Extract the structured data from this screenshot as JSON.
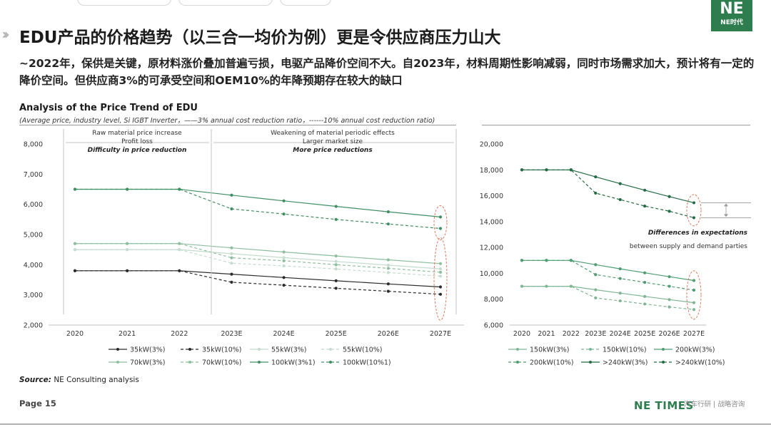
{
  "header": {
    "title": "EDU产品的价格趋势（以三合一均价为例）更是令供应商压力山大",
    "summary": "~2022年，保供是关键，原材料涨价叠加普遍亏损，电驱产品降价空间不大。自2023年，材料周期性影响减弱，同时市场需求加大，预计将有一定的降价空间。但供应商3%的可承受空间和OEM10%的年降预期存在较大的缺口",
    "logo_text": "NE时代",
    "logo_mark": "NE"
  },
  "chart_header": {
    "title": "Analysis of the Price Trend of EDU",
    "subtitle": "(Average price, industry level, Si IGBT Inverter，——3% annual cost reduction ratio，------10% annual cost reduction ratio)"
  },
  "chart_data": [
    {
      "type": "line",
      "x": [
        "2020",
        "2021",
        "2022",
        "2023E",
        "2024E",
        "2025E",
        "2026E",
        "2027E"
      ],
      "ylim": [
        2000,
        8000
      ],
      "yticks": [
        "2,000",
        "3,000",
        "4,000",
        "5,000",
        "6,000",
        "7,000",
        "8,000"
      ],
      "annotations": {
        "left": [
          "Raw material price increase",
          "Profit loss",
          "Difficulty in price reduction"
        ],
        "right": [
          "Weakening of material periodic effects",
          "Larger market size",
          "More price reductions"
        ]
      },
      "series": [
        {
          "name": "35kW(3%)",
          "color": "#2b2b2b",
          "dashed": false,
          "values": [
            3800,
            3800,
            3800,
            3686,
            3575,
            3468,
            3364,
            3263
          ]
        },
        {
          "name": "35kW(10%)",
          "color": "#2b2b2b",
          "dashed": true,
          "values": [
            3800,
            3800,
            3800,
            3420,
            3320,
            3220,
            3120,
            3020
          ]
        },
        {
          "name": "55kW(3%)",
          "color": "#c4dccd",
          "dashed": false,
          "values": [
            4500,
            4500,
            4500,
            4365,
            4234,
            4107,
            3984,
            3864
          ]
        },
        {
          "name": "55kW(10%)",
          "color": "#c4dccd",
          "dashed": true,
          "values": [
            4500,
            4500,
            4500,
            4050,
            3960,
            3860,
            3740,
            3620
          ]
        },
        {
          "name": "70kW(3%)",
          "color": "#8dbf9f",
          "dashed": false,
          "values": [
            4700,
            4700,
            4700,
            4559,
            4422,
            4290,
            4161,
            4036
          ]
        },
        {
          "name": "70kW(10%)",
          "color": "#8dbf9f",
          "dashed": true,
          "values": [
            4700,
            4700,
            4700,
            4230,
            4130,
            4000,
            3880,
            3750
          ]
        },
        {
          "name": "100kW(3%1)",
          "color": "#3f8f63",
          "dashed": false,
          "values": [
            6500,
            6500,
            6500,
            6305,
            6116,
            5932,
            5754,
            5582
          ]
        },
        {
          "name": "100kW(10%1)",
          "color": "#3f8f63",
          "dashed": true,
          "values": [
            6500,
            6500,
            6500,
            5850,
            5680,
            5500,
            5350,
            5200
          ]
        }
      ],
      "legend": "bottom"
    },
    {
      "type": "line",
      "x": [
        "2020",
        "2021",
        "2022",
        "2023E",
        "2024E",
        "2025E",
        "2026E",
        "2027E"
      ],
      "ylim": [
        6000,
        20000
      ],
      "yticks": [
        "6,000",
        "8,000",
        "10,000",
        "12,000",
        "14,000",
        "16,000",
        "18,000",
        "20,000"
      ],
      "annotations": [
        "Differences in expectations",
        "between supply and demand parties"
      ],
      "series": [
        {
          "name": "150kW(3%)",
          "color": "#7fb693",
          "dashed": false,
          "values": [
            9000,
            9000,
            9000,
            8730,
            8468,
            8214,
            7968,
            7729
          ]
        },
        {
          "name": "150kW(10%)",
          "color": "#7fb693",
          "dashed": true,
          "values": [
            9000,
            9000,
            9000,
            8100,
            7870,
            7630,
            7400,
            7200
          ]
        },
        {
          "name": "200kW(3%)",
          "color": "#4f9d72",
          "dashed": false,
          "values": [
            11000,
            11000,
            11000,
            10670,
            10350,
            10040,
            9739,
            9447
          ]
        },
        {
          "name": "200kW(10%)",
          "color": "#4f9d72",
          "dashed": true,
          "values": [
            11000,
            11000,
            11000,
            9900,
            9600,
            9300,
            9000,
            8700
          ]
        },
        {
          "name": ">240kW(3%)",
          "color": "#236b43",
          "dashed": false,
          "values": [
            18000,
            18000,
            18000,
            17460,
            16936,
            16428,
            15935,
            15457
          ]
        },
        {
          "name": ">240kW(10%)",
          "color": "#236b43",
          "dashed": true,
          "values": [
            18000,
            18000,
            18000,
            16200,
            15700,
            15200,
            14800,
            14300
          ]
        }
      ],
      "legend": "bottom"
    }
  ],
  "footer": {
    "source_label": "Source:",
    "source_text": " NE Consulting analysis",
    "page": "Page 15",
    "brand": "NE TIMES",
    "brand_sub": "汽车行研 | 战略咨询"
  }
}
